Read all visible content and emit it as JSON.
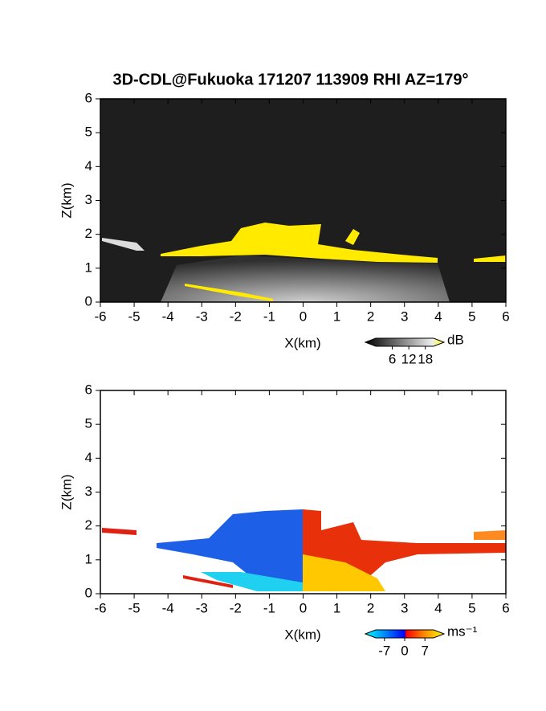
{
  "chart_data": [
    {
      "type": "heatmap",
      "title": "3D-CDL@Fukuoka 171207 113909 RHI AZ=179°",
      "x_label": "X(km)",
      "y_label": "Z(km)",
      "xlim": [
        -6,
        6
      ],
      "xticks": [
        -6,
        -5,
        -4,
        -3,
        -2,
        -1,
        0,
        1,
        2,
        3,
        4,
        5,
        6
      ],
      "ylim": [
        0,
        6
      ],
      "yticks": [
        0,
        1,
        2,
        3,
        4,
        5,
        6
      ],
      "colorbar": {
        "label": "dB",
        "lim": [
          0,
          21
        ],
        "ticks": [
          6,
          12,
          18
        ]
      }
    },
    {
      "type": "heatmap",
      "x_label": "X(km)",
      "y_label": "Z(km)",
      "xlim": [
        -6,
        6
      ],
      "xticks": [
        -6,
        -5,
        -4,
        -3,
        -2,
        -1,
        0,
        1,
        2,
        3,
        4,
        5,
        6
      ],
      "ylim": [
        0,
        6
      ],
      "yticks": [
        0,
        1,
        2,
        3,
        4,
        5,
        6
      ],
      "colorbar": {
        "label": "ms⁻¹",
        "lim": [
          -10,
          10
        ],
        "ticks": [
          -7,
          0,
          7
        ]
      }
    }
  ]
}
